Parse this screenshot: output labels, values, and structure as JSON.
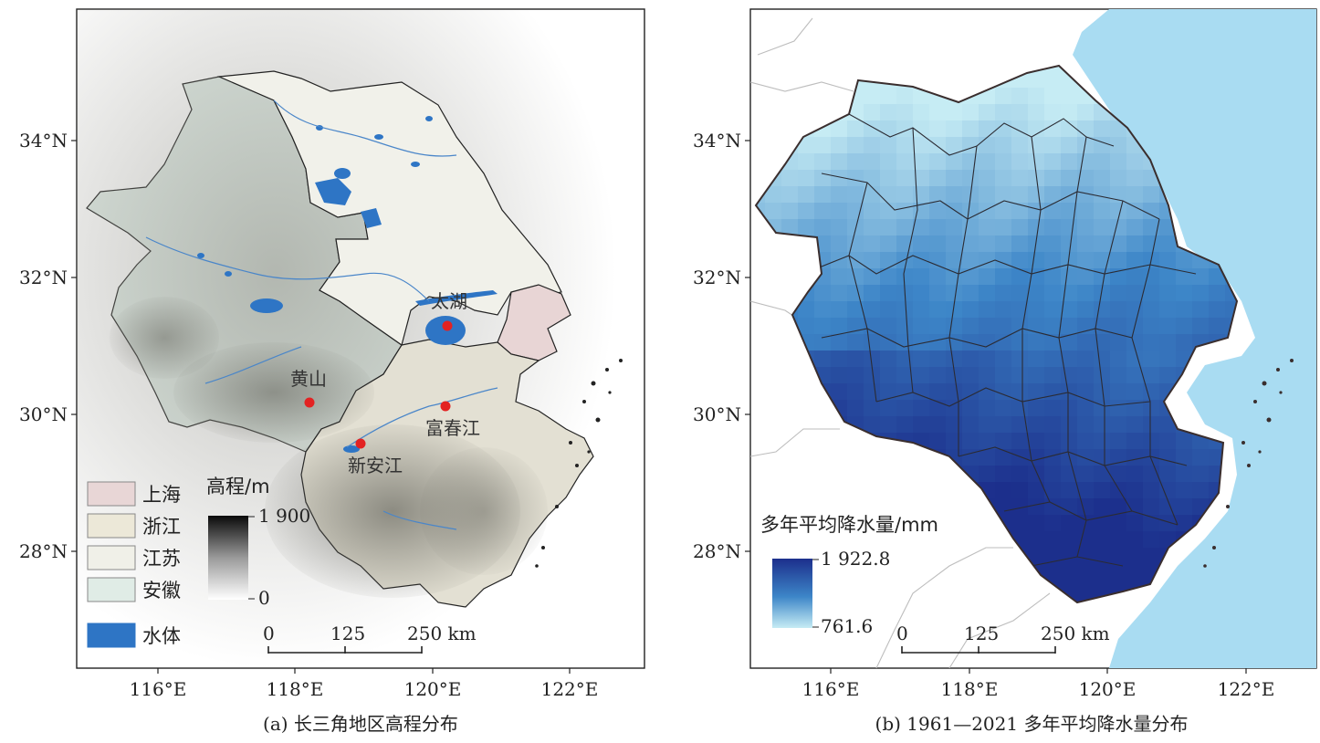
{
  "panel_a": {
    "caption": "(a) 长三角地区高程分布",
    "lat_labels": [
      "34°N",
      "32°N",
      "30°N",
      "28°N"
    ],
    "lon_labels": [
      "116°E",
      "118°E",
      "120°E",
      "122°E"
    ],
    "places": [
      {
        "name": "太湖"
      },
      {
        "name": "黄山"
      },
      {
        "name": "富春江"
      },
      {
        "name": "新安江"
      }
    ],
    "legend": [
      {
        "label": "上海",
        "color": "#e8d6d6"
      },
      {
        "label": "浙江",
        "color": "#ece8d8"
      },
      {
        "label": "江苏",
        "color": "#f0f0e8"
      },
      {
        "label": "安徽",
        "color": "#e0ece6"
      },
      {
        "label": "水体",
        "color": "#2e75c5"
      }
    ],
    "elevation_legend": {
      "title": "高程/m",
      "max": "1 900",
      "min": "0"
    },
    "scale_bar": {
      "ticks": [
        "0",
        "125",
        "250 km"
      ]
    }
  },
  "panel_b": {
    "caption": "(b) 1961—2021 多年平均降水量分布",
    "lat_labels": [
      "34°N",
      "32°N",
      "30°N",
      "28°N"
    ],
    "lon_labels": [
      "116°E",
      "118°E",
      "120°E",
      "122°E"
    ],
    "precip_legend": {
      "title": "多年平均降水量/mm",
      "max": "1 922.8",
      "min": "761.6"
    },
    "scale_bar": {
      "ticks": [
        "0",
        "125",
        "250 km"
      ]
    },
    "colors": {
      "sea": "#a9dcf2",
      "low": "#c6ecf4",
      "mid": "#3d86c8",
      "high": "#1c2f8c"
    }
  }
}
